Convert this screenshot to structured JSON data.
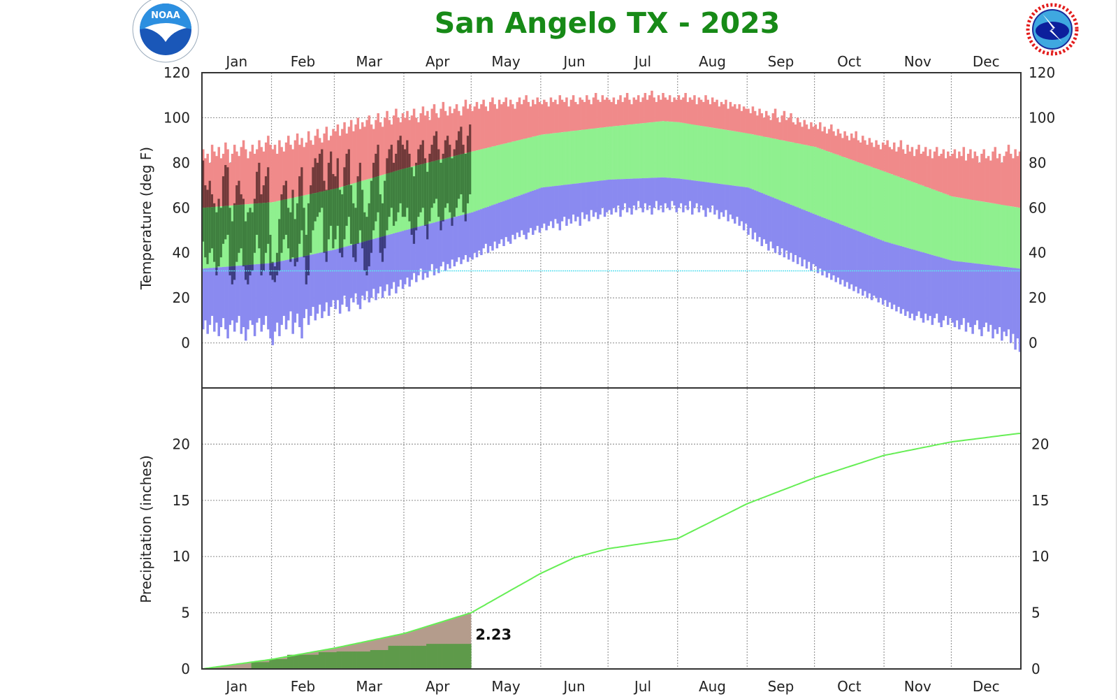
{
  "title": "San Angelo TX - 2023",
  "logos": {
    "left": "NOAA",
    "right": "NATIONAL WEATHER SERVICE"
  },
  "colors": {
    "title": "#178a17",
    "record_high": "#f08a8a",
    "normal_range": "#8ff08f",
    "record_low": "#8a8af0",
    "observed_above_normal": "#713a3a",
    "observed_normal": "#3f7f3f",
    "observed_below_normal": "#3c3c80",
    "freezing_line": "#5fe0f0",
    "normal_precip_line": "#66ee55",
    "normal_precip_fill": "#b49c8c",
    "observed_precip_fill": "#5e9a4a"
  },
  "chart_data": [
    {
      "type": "bar",
      "panel": "temperature",
      "ylabel": "Temperature (deg F)",
      "ylim": [
        -20,
        120
      ],
      "yticks": [
        "120",
        "100",
        "80",
        "60",
        "40",
        "20",
        "0"
      ],
      "months": [
        "Jan",
        "Feb",
        "Mar",
        "Apr",
        "May",
        "Jun",
        "Jul",
        "Aug",
        "Sep",
        "Oct",
        "Nov",
        "Dec"
      ],
      "grid": true,
      "freezing_line": 32,
      "normal_high": [
        {
          "date": "2023-01-01",
          "value": 60
        },
        {
          "date": "2023-02-01",
          "value": 62.5
        },
        {
          "date": "2023-03-01",
          "value": 68.5
        },
        {
          "date": "2023-04-01",
          "value": 77.5
        },
        {
          "date": "2023-05-01",
          "value": 85
        },
        {
          "date": "2023-06-01",
          "value": 92.5
        },
        {
          "date": "2023-07-01",
          "value": 96
        },
        {
          "date": "2023-07-25",
          "value": 98.5
        },
        {
          "date": "2023-08-01",
          "value": 98
        },
        {
          "date": "2023-09-01",
          "value": 93
        },
        {
          "date": "2023-10-01",
          "value": 87
        },
        {
          "date": "2023-11-01",
          "value": 76
        },
        {
          "date": "2023-12-01",
          "value": 65
        },
        {
          "date": "2023-12-31",
          "value": 60
        }
      ],
      "normal_low": [
        {
          "date": "2023-01-01",
          "value": 33
        },
        {
          "date": "2023-02-01",
          "value": 35.5
        },
        {
          "date": "2023-03-01",
          "value": 41.5
        },
        {
          "date": "2023-04-01",
          "value": 50
        },
        {
          "date": "2023-05-01",
          "value": 58
        },
        {
          "date": "2023-06-01",
          "value": 69
        },
        {
          "date": "2023-07-01",
          "value": 72.5
        },
        {
          "date": "2023-07-25",
          "value": 73.5
        },
        {
          "date": "2023-08-01",
          "value": 73
        },
        {
          "date": "2023-09-01",
          "value": 69
        },
        {
          "date": "2023-10-01",
          "value": 57
        },
        {
          "date": "2023-11-01",
          "value": 45
        },
        {
          "date": "2023-12-01",
          "value": 36.5
        },
        {
          "date": "2023-12-31",
          "value": 33
        }
      ],
      "record_high": [
        86,
        82,
        84,
        80,
        88,
        85,
        83,
        87,
        82,
        84,
        89,
        86,
        80,
        84,
        88,
        85,
        83,
        87,
        90,
        86,
        82,
        85,
        88,
        84,
        86,
        90,
        87,
        85,
        89,
        92,
        88,
        86,
        88,
        84,
        90,
        87,
        85,
        89,
        92,
        88,
        86,
        90,
        93,
        88,
        91,
        87,
        89,
        94,
        90,
        88,
        92,
        95,
        91,
        89,
        93,
        96,
        90,
        92,
        95,
        94,
        97,
        92,
        95,
        98,
        93,
        96,
        99,
        94,
        97,
        100,
        95,
        98,
        96,
        99,
        101,
        97,
        95,
        99,
        102,
        98,
        96,
        100,
        103,
        99,
        97,
        101,
        104,
        100,
        98,
        102,
        100,
        103,
        99,
        101,
        104,
        100,
        98,
        102,
        105,
        101,
        103,
        99,
        104,
        106,
        102,
        100,
        104,
        107,
        103,
        101,
        105,
        102,
        104,
        106,
        103,
        101,
        105,
        108,
        104,
        106,
        103,
        105,
        107,
        104,
        106,
        108,
        105,
        103,
        107,
        109,
        106,
        104,
        108,
        106,
        107,
        109,
        105,
        108,
        106,
        104,
        107,
        109,
        106,
        108,
        110,
        107,
        105,
        108,
        106,
        109,
        107,
        106,
        108,
        107,
        105,
        109,
        107,
        108,
        106,
        110,
        108,
        107,
        109,
        105,
        108,
        110,
        107,
        106,
        109,
        108,
        107,
        110,
        108,
        106,
        109,
        111,
        108,
        107,
        110,
        108,
        109,
        108,
        107,
        109,
        106,
        108,
        110,
        107,
        109,
        111,
        108,
        106,
        109,
        108,
        110,
        107,
        109,
        111,
        108,
        110,
        112,
        109,
        107,
        110,
        108,
        111,
        109,
        108,
        110,
        107,
        109,
        108,
        110,
        108,
        109,
        111,
        107,
        109,
        108,
        110,
        106,
        109,
        108,
        107,
        110,
        108,
        106,
        109,
        107,
        108,
        105,
        107,
        106,
        108,
        104,
        107,
        105,
        106,
        104,
        106,
        103,
        105,
        104,
        104,
        102,
        105,
        103,
        101,
        104,
        102,
        100,
        103,
        101,
        99,
        102,
        104,
        100,
        98,
        101,
        103,
        99,
        100,
        102,
        98,
        97,
        100,
        98,
        96,
        99,
        97,
        95,
        98,
        96,
        97,
        95,
        98,
        94,
        96,
        93,
        95,
        97,
        94,
        92,
        95,
        93,
        91,
        94,
        92,
        90,
        93,
        91,
        94,
        90,
        89,
        92,
        90,
        88,
        91,
        89,
        87,
        90,
        88,
        86,
        89,
        88,
        90,
        87,
        86,
        89,
        85,
        87,
        90,
        86,
        84,
        88,
        85,
        87,
        83,
        86,
        88,
        84,
        85,
        87,
        83,
        86,
        82,
        85,
        87,
        83,
        84,
        86,
        82,
        85,
        83,
        84,
        86,
        82,
        85,
        83,
        87,
        81,
        84,
        86,
        82,
        85,
        83,
        80,
        84,
        86,
        82,
        83,
        81,
        85,
        87,
        82,
        84,
        80,
        83,
        85,
        88,
        84,
        82,
        86,
        83,
        85
      ],
      "record_low": [
        6,
        10,
        4,
        8,
        12,
        5,
        9,
        3,
        7,
        11,
        6,
        2,
        8,
        10,
        5,
        9,
        12,
        4,
        7,
        1,
        6,
        10,
        8,
        3,
        9,
        11,
        5,
        8,
        12,
        6,
        2,
        -1,
        5,
        9,
        3,
        8,
        12,
        6,
        10,
        14,
        4,
        9,
        13,
        7,
        2,
        11,
        15,
        8,
        12,
        16,
        10,
        13,
        17,
        11,
        14,
        18,
        12,
        16,
        19,
        15,
        19,
        13,
        17,
        21,
        16,
        14,
        20,
        18,
        22,
        17,
        15,
        21,
        19,
        23,
        18,
        20,
        24,
        19,
        22,
        25,
        20,
        23,
        26,
        21,
        24,
        27,
        22,
        25,
        28,
        24,
        26,
        29,
        25,
        28,
        31,
        27,
        30,
        33,
        28,
        31,
        29,
        32,
        35,
        30,
        33,
        31,
        34,
        36,
        32,
        35,
        33,
        37,
        34,
        36,
        38,
        35,
        37,
        39,
        36,
        38,
        37,
        40,
        38,
        41,
        39,
        42,
        44,
        40,
        43,
        41,
        45,
        42,
        44,
        46,
        43,
        47,
        45,
        44,
        48,
        46,
        49,
        47,
        50,
        48,
        46,
        49,
        51,
        48,
        50,
        52,
        49,
        51,
        53,
        50,
        52,
        54,
        51,
        55,
        53,
        50,
        54,
        56,
        52,
        55,
        53,
        57,
        54,
        56,
        52,
        58,
        55,
        57,
        54,
        59,
        56,
        58,
        55,
        57,
        60,
        56,
        58,
        59,
        57,
        60,
        58,
        61,
        56,
        59,
        62,
        58,
        60,
        57,
        61,
        59,
        63,
        60,
        58,
        62,
        59,
        61,
        57,
        60,
        63,
        59,
        61,
        58,
        62,
        60,
        59,
        63,
        61,
        58,
        60,
        62,
        58,
        61,
        59,
        63,
        57,
        60,
        62,
        58,
        61,
        59,
        56,
        60,
        58,
        61,
        57,
        59,
        55,
        58,
        56,
        59,
        54,
        57,
        55,
        53,
        56,
        52,
        54,
        50,
        53,
        48,
        51,
        46,
        49,
        45,
        47,
        43,
        46,
        44,
        41,
        45,
        42,
        40,
        43,
        39,
        42,
        38,
        41,
        37,
        40,
        36,
        39,
        35,
        38,
        34,
        37,
        33,
        36,
        32,
        35,
        34,
        31,
        33,
        30,
        32,
        29,
        31,
        28,
        30,
        27,
        29,
        26,
        28,
        25,
        27,
        24,
        26,
        23,
        25,
        22,
        24,
        21,
        23,
        20,
        22,
        19,
        21,
        20,
        18,
        20,
        17,
        19,
        16,
        18,
        15,
        17,
        14,
        16,
        13,
        15,
        12,
        14,
        11,
        13,
        10,
        12,
        14,
        11,
        9,
        13,
        10,
        12,
        8,
        11,
        13,
        9,
        7,
        10,
        12,
        8,
        11,
        9,
        7,
        10,
        6,
        8,
        11,
        5,
        9,
        7,
        4,
        8,
        10,
        6,
        3,
        7,
        9,
        5,
        8,
        2,
        6,
        4,
        7,
        1,
        5,
        3,
        6,
        0,
        4,
        -3,
        2,
        -4
      ],
      "observed_high": [
        81,
        70,
        68,
        72,
        66,
        62,
        58,
        64,
        60,
        74,
        79,
        78,
        60,
        54,
        62,
        70,
        72,
        66,
        64,
        54,
        58,
        60,
        58,
        64,
        76,
        80,
        66,
        70,
        74,
        78,
        48,
        36,
        34,
        40,
        55,
        66,
        70,
        72,
        60,
        58,
        68,
        55,
        62,
        74,
        78,
        60,
        48,
        62,
        70,
        78,
        82,
        80,
        84,
        86,
        72,
        68,
        80,
        85,
        75,
        74,
        82,
        68,
        66,
        78,
        84,
        86,
        70,
        62,
        60,
        74,
        80,
        68,
        58,
        56,
        62,
        72,
        80,
        84,
        88,
        66,
        62,
        72,
        82,
        86,
        88,
        80,
        84,
        90,
        92,
        88,
        86,
        90,
        84,
        78,
        74,
        80,
        86,
        88,
        90,
        82,
        76,
        84,
        88,
        92,
        94,
        86,
        80,
        84,
        90,
        92,
        88,
        82,
        86,
        90,
        94,
        96,
        88,
        84,
        92,
        97
      ],
      "observed_low": [
        45,
        38,
        35,
        40,
        42,
        36,
        30,
        34,
        38,
        44,
        46,
        48,
        30,
        26,
        28,
        36,
        40,
        42,
        34,
        28,
        26,
        30,
        32,
        40,
        48,
        42,
        30,
        32,
        40,
        44,
        30,
        28,
        27,
        30,
        32,
        40,
        46,
        48,
        42,
        36,
        38,
        34,
        36,
        44,
        50,
        38,
        26,
        30,
        40,
        50,
        54,
        56,
        58,
        60,
        40,
        36,
        46,
        52,
        42,
        46,
        52,
        40,
        38,
        46,
        52,
        56,
        44,
        38,
        36,
        44,
        50,
        42,
        32,
        30,
        34,
        40,
        50,
        54,
        58,
        40,
        36,
        42,
        50,
        56,
        60,
        52,
        54,
        58,
        62,
        56,
        56,
        60,
        54,
        48,
        44,
        50,
        56,
        58,
        60,
        52,
        46,
        54,
        60,
        62,
        64,
        56,
        50,
        54,
        60,
        62,
        58,
        52,
        56,
        60,
        64,
        66,
        58,
        54,
        62,
        66
      ]
    },
    {
      "type": "area",
      "panel": "precipitation",
      "ylabel": "Precipitation (inches)",
      "ylim": [
        0,
        25
      ],
      "yticks": [
        "20",
        "15",
        "10",
        "5",
        "0"
      ],
      "months": [
        "Jan",
        "Feb",
        "Mar",
        "Apr",
        "May",
        "Jun",
        "Jul",
        "Aug",
        "Sep",
        "Oct",
        "Nov",
        "Dec"
      ],
      "grid": true,
      "normal_cumulative": [
        {
          "date": "2023-01-01",
          "value": 0
        },
        {
          "date": "2023-02-01",
          "value": 0.85
        },
        {
          "date": "2023-03-01",
          "value": 1.85
        },
        {
          "date": "2023-04-01",
          "value": 3.15
        },
        {
          "date": "2023-05-01",
          "value": 5.0
        },
        {
          "date": "2023-05-16",
          "value": 6.7
        },
        {
          "date": "2023-06-01",
          "value": 8.5
        },
        {
          "date": "2023-06-16",
          "value": 9.9
        },
        {
          "date": "2023-07-01",
          "value": 10.7
        },
        {
          "date": "2023-08-01",
          "value": 11.6
        },
        {
          "date": "2023-09-01",
          "value": 14.7
        },
        {
          "date": "2023-10-01",
          "value": 17.0
        },
        {
          "date": "2023-11-01",
          "value": 19.0
        },
        {
          "date": "2023-12-01",
          "value": 20.2
        },
        {
          "date": "2023-12-31",
          "value": 20.95
        }
      ],
      "observed_daily": [
        {
          "date": "2023-01-23",
          "inches": 0.6
        },
        {
          "date": "2023-01-31",
          "inches": 0.27
        },
        {
          "date": "2023-02-08",
          "inches": 0.39
        },
        {
          "date": "2023-02-22",
          "inches": 0.23
        },
        {
          "date": "2023-03-02",
          "inches": 0.06
        },
        {
          "date": "2023-03-17",
          "inches": 0.13
        },
        {
          "date": "2023-03-25",
          "inches": 0.38
        },
        {
          "date": "2023-04-11",
          "inches": 0.17
        }
      ],
      "observed_through": "2023-04-30",
      "observed_total_label": "2.23"
    }
  ]
}
